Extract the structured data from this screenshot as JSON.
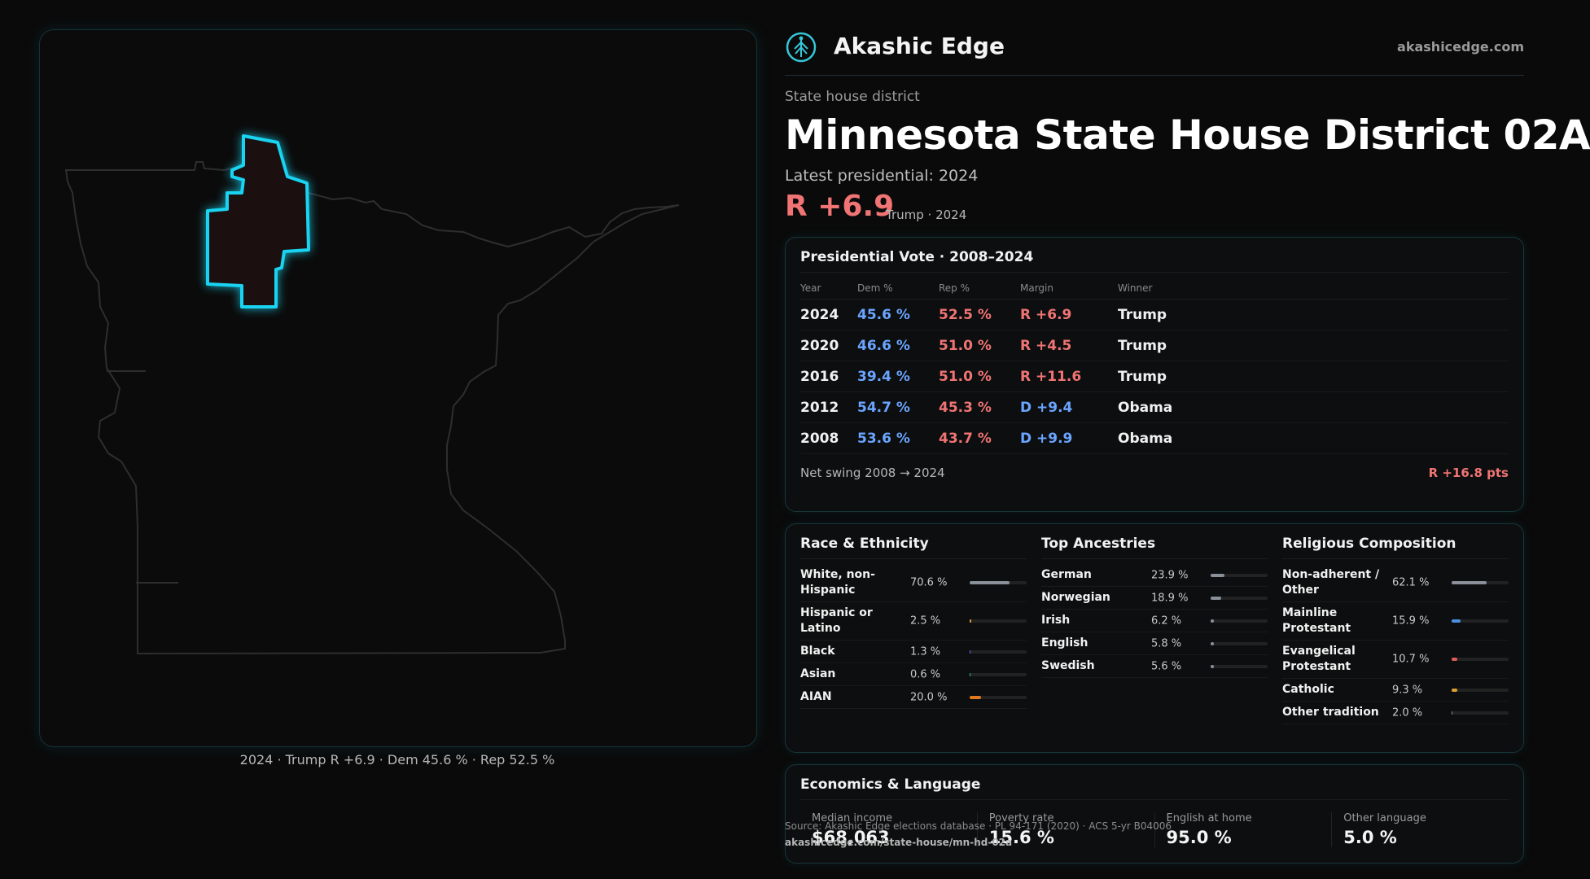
{
  "brand": {
    "name": "Akashic Edge",
    "url": "akashicedge.com",
    "logo_icon": "tree-emblem-icon"
  },
  "header": {
    "kicker": "State house district",
    "title": "Minnesota State House District 02A",
    "latest_label": "Latest presidential: 2024",
    "margin": "R +6.9",
    "margin_sub": "Trump · 2024"
  },
  "map": {
    "caption": "2024 · Trump R +6.9 · Dem 45.6 % · Rep 52.5 %",
    "state_outline_color": "#2e2e2e",
    "district_outline_color": "#19d3f0",
    "district_fill_color": "#1c0f10"
  },
  "vote": {
    "title": "Presidential Vote · 2008–2024",
    "headers": [
      "Year",
      "Dem %",
      "Rep %",
      "Margin",
      "Winner"
    ],
    "rows": [
      {
        "year": "2024",
        "dem": "45.6 %",
        "rep": "52.5 %",
        "margin": "R +6.9",
        "party": "R",
        "winner": "Trump"
      },
      {
        "year": "2020",
        "dem": "46.6 %",
        "rep": "51.0 %",
        "margin": "R +4.5",
        "party": "R",
        "winner": "Trump"
      },
      {
        "year": "2016",
        "dem": "39.4 %",
        "rep": "51.0 %",
        "margin": "R +11.6",
        "party": "R",
        "winner": "Trump"
      },
      {
        "year": "2012",
        "dem": "54.7 %",
        "rep": "45.3 %",
        "margin": "D +9.4",
        "party": "D",
        "winner": "Obama"
      },
      {
        "year": "2008",
        "dem": "53.6 %",
        "rep": "43.7 %",
        "margin": "D +9.9",
        "party": "D",
        "winner": "Obama"
      }
    ],
    "net_swing_label": "Net swing 2008 → 2024",
    "net_swing_value": "R +16.8 pts"
  },
  "colors": {
    "dem": "#6aa5ff",
    "rep": "#f07474"
  },
  "demographics": [
    {
      "title": "Race & Ethnicity",
      "rows": [
        {
          "label": "White, non-Hispanic",
          "pct": "70.6 %",
          "value": 70.6,
          "color": "#8a9099"
        },
        {
          "label": "Hispanic or Latino",
          "pct": "2.5 %",
          "value": 2.5,
          "color": "#e0a030"
        },
        {
          "label": "Black",
          "pct": "1.3 %",
          "value": 1.3,
          "color": "#6a6aff"
        },
        {
          "label": "Asian",
          "pct": "0.6 %",
          "value": 0.6,
          "color": "#40c080"
        },
        {
          "label": "AIAN",
          "pct": "20.0 %",
          "value": 20.0,
          "color": "#e07a20"
        }
      ]
    },
    {
      "title": "Top Ancestries",
      "rows": [
        {
          "label": "German",
          "pct": "23.9 %",
          "value": 23.9,
          "color": "#8a9099"
        },
        {
          "label": "Norwegian",
          "pct": "18.9 %",
          "value": 18.9,
          "color": "#8a9099"
        },
        {
          "label": "Irish",
          "pct": "6.2 %",
          "value": 6.2,
          "color": "#8a9099"
        },
        {
          "label": "English",
          "pct": "5.8 %",
          "value": 5.8,
          "color": "#8a9099"
        },
        {
          "label": "Swedish",
          "pct": "5.6 %",
          "value": 5.6,
          "color": "#8a9099"
        }
      ]
    },
    {
      "title": "Religious Composition",
      "rows": [
        {
          "label": "Non-adherent / Other",
          "pct": "62.1 %",
          "value": 62.1,
          "color": "#8a9099"
        },
        {
          "label": "Mainline Protestant",
          "pct": "15.9 %",
          "value": 15.9,
          "color": "#4a90e2"
        },
        {
          "label": "Evangelical Protestant",
          "pct": "10.7 %",
          "value": 10.7,
          "color": "#e05a5a"
        },
        {
          "label": "Catholic",
          "pct": "9.3 %",
          "value": 9.3,
          "color": "#e0a030"
        },
        {
          "label": "Other tradition",
          "pct": "2.0 %",
          "value": 2.0,
          "color": "#8a9099"
        }
      ]
    }
  ],
  "economics": {
    "title": "Economics & Language",
    "cells": [
      {
        "label": "Median income",
        "value": "$68,063"
      },
      {
        "label": "Poverty rate",
        "value": "15.6 %"
      },
      {
        "label": "English at home",
        "value": "95.0 %"
      },
      {
        "label": "Other language",
        "value": "5.0 %"
      }
    ]
  },
  "source": {
    "line": "Source: Akashic Edge elections database · PL 94-171 (2020) · ACS 5-yr B04006",
    "url": "akashicedge.com/state-house/mn-hd-02a"
  }
}
